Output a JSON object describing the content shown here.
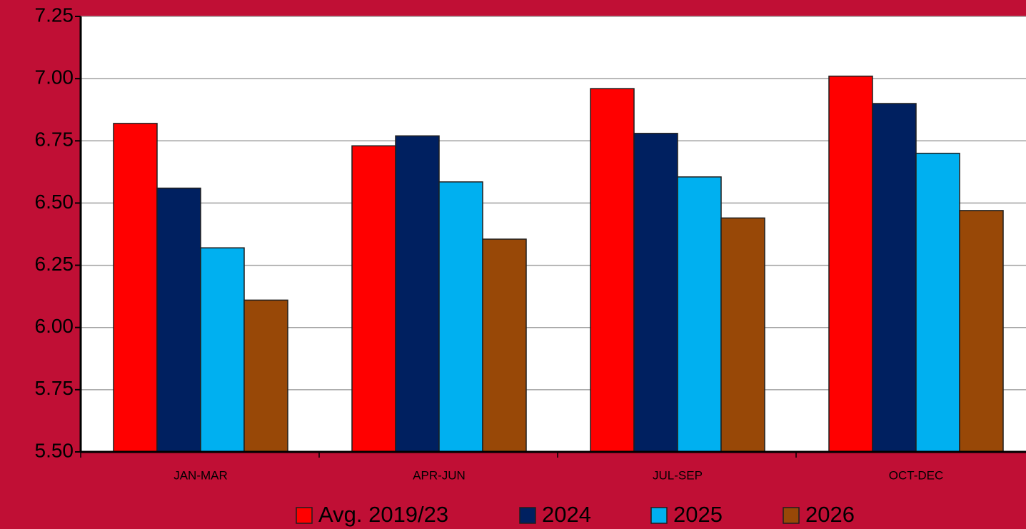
{
  "chart_data": {
    "type": "bar",
    "categories": [
      "JAN-MAR",
      "APR-JUN",
      "JUL-SEP",
      "OCT-DEC"
    ],
    "series": [
      {
        "name": "Avg. 2019/23",
        "color": "#ff0000",
        "values": [
          6.82,
          6.73,
          6.96,
          7.01
        ]
      },
      {
        "name": "2024",
        "color": "#002060",
        "values": [
          6.56,
          6.77,
          6.78,
          6.9
        ]
      },
      {
        "name": "2025",
        "color": "#00b0f0",
        "values": [
          6.32,
          6.585,
          6.605,
          6.7
        ]
      },
      {
        "name": "2026",
        "color": "#984807",
        "values": [
          6.11,
          6.355,
          6.44,
          6.47
        ]
      }
    ],
    "ylim": [
      5.5,
      7.25
    ],
    "yticks": [
      {
        "value": 5.5,
        "label": "5.50"
      },
      5.75,
      {
        "value": 6,
        "label": "6.00"
      },
      6.25,
      {
        "value": 6.5,
        "label": "6.50"
      },
      6.75,
      {
        "value": 7,
        "label": "7.00"
      },
      7.25
    ],
    "grid": true,
    "legend": "bottom"
  }
}
